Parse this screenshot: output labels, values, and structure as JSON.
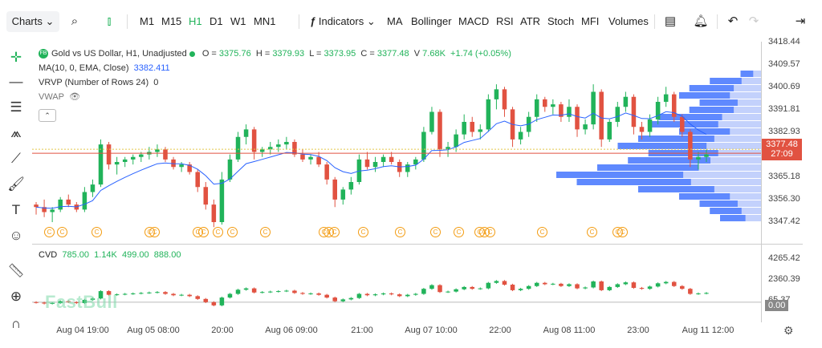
{
  "toolbar": {
    "charts_label": "Charts",
    "timeframes": [
      "M1",
      "M15",
      "H1",
      "D1",
      "W1",
      "MN1"
    ],
    "active_timeframe": "H1",
    "indicators_label": "Indicators",
    "studies": [
      "MA",
      "Bollinger",
      "MACD",
      "RSI",
      "ATR",
      "Stoch",
      "MFI",
      "Volumes"
    ]
  },
  "legend": {
    "badge": "FB",
    "symbol": "Gold vs US Dollar, H1, Unadjusted",
    "o_label": "O",
    "o": "3375.76",
    "h_label": "H",
    "h": "3379.93",
    "l_label": "L",
    "l": "3373.95",
    "c_label": "C",
    "c": "3377.48",
    "v_label": "V",
    "v": "7.68K",
    "change": "+1.74 (+0.05%)",
    "ma_label": "MA(10, 0, EMA, Close)",
    "ma_value": "3382.411",
    "vrvp_label": "VRVP (Number of Rows 24)",
    "vrvp_value": "0",
    "vwap_label": "VWAP"
  },
  "cvd": {
    "label": "CVD",
    "v1": "785.00",
    "v2": "1.14K",
    "v3": "499.00",
    "v4": "888.00"
  },
  "price_axis": {
    "labels": [
      "3418.44",
      "3409.57",
      "3400.69",
      "3391.81",
      "3382.93",
      "3365.18",
      "3356.30",
      "3347.42"
    ],
    "current_price": "3377.48",
    "countdown": "27:09",
    "cvd_labels": [
      "4265.42",
      "2360.39",
      "65.37"
    ],
    "cvd_current": "0.00"
  },
  "time_axis": [
    "Aug 04 19:00",
    "Aug 05 08:00",
    "20:00",
    "Aug 06 09:00",
    "21:00",
    "Aug 07 10:00",
    "22:00",
    "Aug 08 11:00",
    "23:00",
    "Aug 11 12:00"
  ],
  "watermark": "FastBull",
  "event_marker": "C",
  "colors": {
    "up": "#21b35a",
    "down": "#e15241",
    "ma": "#2962ff",
    "vp": "#4d7cfe",
    "vp_light": "#b9c9fb"
  },
  "chart_data": {
    "type": "candlestick",
    "symbol": "Gold vs US Dollar, H1",
    "ylim": [
      3342,
      3422
    ],
    "candles_approx": [
      [
        3357,
        3358,
        3353,
        3356
      ],
      [
        3356,
        3359,
        3352,
        3354
      ],
      [
        3354,
        3356,
        3350,
        3355
      ],
      [
        3355,
        3360,
        3354,
        3359
      ],
      [
        3359,
        3361,
        3356,
        3357
      ],
      [
        3357,
        3358,
        3354,
        3355
      ],
      [
        3355,
        3364,
        3354,
        3362
      ],
      [
        3362,
        3367,
        3360,
        3365
      ],
      [
        3365,
        3383,
        3364,
        3381
      ],
      [
        3381,
        3382,
        3371,
        3373
      ],
      [
        3373,
        3376,
        3369,
        3374
      ],
      [
        3374,
        3376,
        3372,
        3375
      ],
      [
        3375,
        3377,
        3373,
        3376
      ],
      [
        3376,
        3378,
        3374,
        3377
      ],
      [
        3377,
        3380,
        3375,
        3378
      ],
      [
        3378,
        3381,
        3376,
        3379
      ],
      [
        3379,
        3380,
        3374,
        3375
      ],
      [
        3375,
        3376,
        3371,
        3372
      ],
      [
        3372,
        3374,
        3370,
        3373
      ],
      [
        3373,
        3374,
        3369,
        3370
      ],
      [
        3370,
        3371,
        3362,
        3364
      ],
      [
        3364,
        3366,
        3355,
        3357
      ],
      [
        3357,
        3359,
        3348,
        3350
      ],
      [
        3350,
        3370,
        3349,
        3367
      ],
      [
        3367,
        3377,
        3366,
        3375
      ],
      [
        3375,
        3386,
        3374,
        3384
      ],
      [
        3384,
        3389,
        3381,
        3387
      ],
      [
        3387,
        3388,
        3375,
        3378
      ],
      [
        3378,
        3380,
        3376,
        3379
      ],
      [
        3379,
        3382,
        3377,
        3380
      ],
      [
        3380,
        3383,
        3378,
        3381
      ],
      [
        3381,
        3384,
        3379,
        3382
      ],
      [
        3382,
        3383,
        3376,
        3377
      ],
      [
        3377,
        3379,
        3374,
        3375
      ],
      [
        3375,
        3377,
        3373,
        3376
      ],
      [
        3376,
        3378,
        3372,
        3373
      ],
      [
        3373,
        3374,
        3365,
        3367
      ],
      [
        3367,
        3368,
        3356,
        3359
      ],
      [
        3359,
        3364,
        3357,
        3363
      ],
      [
        3363,
        3368,
        3361,
        3366
      ],
      [
        3366,
        3377,
        3365,
        3375
      ],
      [
        3375,
        3378,
        3371,
        3372
      ],
      [
        3372,
        3376,
        3370,
        3374
      ],
      [
        3374,
        3377,
        3372,
        3376
      ],
      [
        3376,
        3378,
        3373,
        3374
      ],
      [
        3374,
        3375,
        3368,
        3370
      ],
      [
        3370,
        3374,
        3368,
        3373
      ],
      [
        3373,
        3376,
        3371,
        3375
      ],
      [
        3375,
        3388,
        3374,
        3386
      ],
      [
        3386,
        3396,
        3385,
        3394
      ],
      [
        3394,
        3395,
        3376,
        3379
      ],
      [
        3379,
        3382,
        3376,
        3380
      ],
      [
        3380,
        3387,
        3378,
        3385
      ],
      [
        3385,
        3393,
        3383,
        3390
      ],
      [
        3390,
        3392,
        3384,
        3386
      ],
      [
        3386,
        3389,
        3383,
        3387
      ],
      [
        3387,
        3401,
        3386,
        3399
      ],
      [
        3399,
        3405,
        3395,
        3403
      ],
      [
        3403,
        3404,
        3392,
        3395
      ],
      [
        3395,
        3396,
        3380,
        3383
      ],
      [
        3383,
        3388,
        3381,
        3386
      ],
      [
        3386,
        3394,
        3384,
        3392
      ],
      [
        3392,
        3401,
        3390,
        3399
      ],
      [
        3399,
        3400,
        3394,
        3396
      ],
      [
        3396,
        3399,
        3393,
        3397
      ],
      [
        3397,
        3398,
        3390,
        3392
      ],
      [
        3392,
        3399,
        3390,
        3396
      ],
      [
        3396,
        3397,
        3384,
        3387
      ],
      [
        3387,
        3391,
        3385,
        3389
      ],
      [
        3389,
        3405,
        3387,
        3402
      ],
      [
        3402,
        3403,
        3380,
        3383
      ],
      [
        3383,
        3391,
        3382,
        3390
      ],
      [
        3390,
        3398,
        3388,
        3396
      ],
      [
        3396,
        3402,
        3394,
        3400
      ],
      [
        3400,
        3401,
        3385,
        3388
      ],
      [
        3388,
        3390,
        3383,
        3386
      ],
      [
        3386,
        3393,
        3384,
        3391
      ],
      [
        3391,
        3400,
        3389,
        3398
      ],
      [
        3398,
        3404,
        3396,
        3401
      ],
      [
        3401,
        3402,
        3390,
        3392
      ],
      [
        3392,
        3393,
        3384,
        3386
      ],
      [
        3386,
        3387,
        3372,
        3375
      ],
      [
        3375,
        3378,
        3371,
        3376
      ],
      [
        3376,
        3379,
        3374,
        3377
      ]
    ],
    "ma_label": "MA(10, 0, EMA, Close)",
    "ma_last": 3382.411,
    "cvd_range": [
      -500,
      4800
    ]
  }
}
